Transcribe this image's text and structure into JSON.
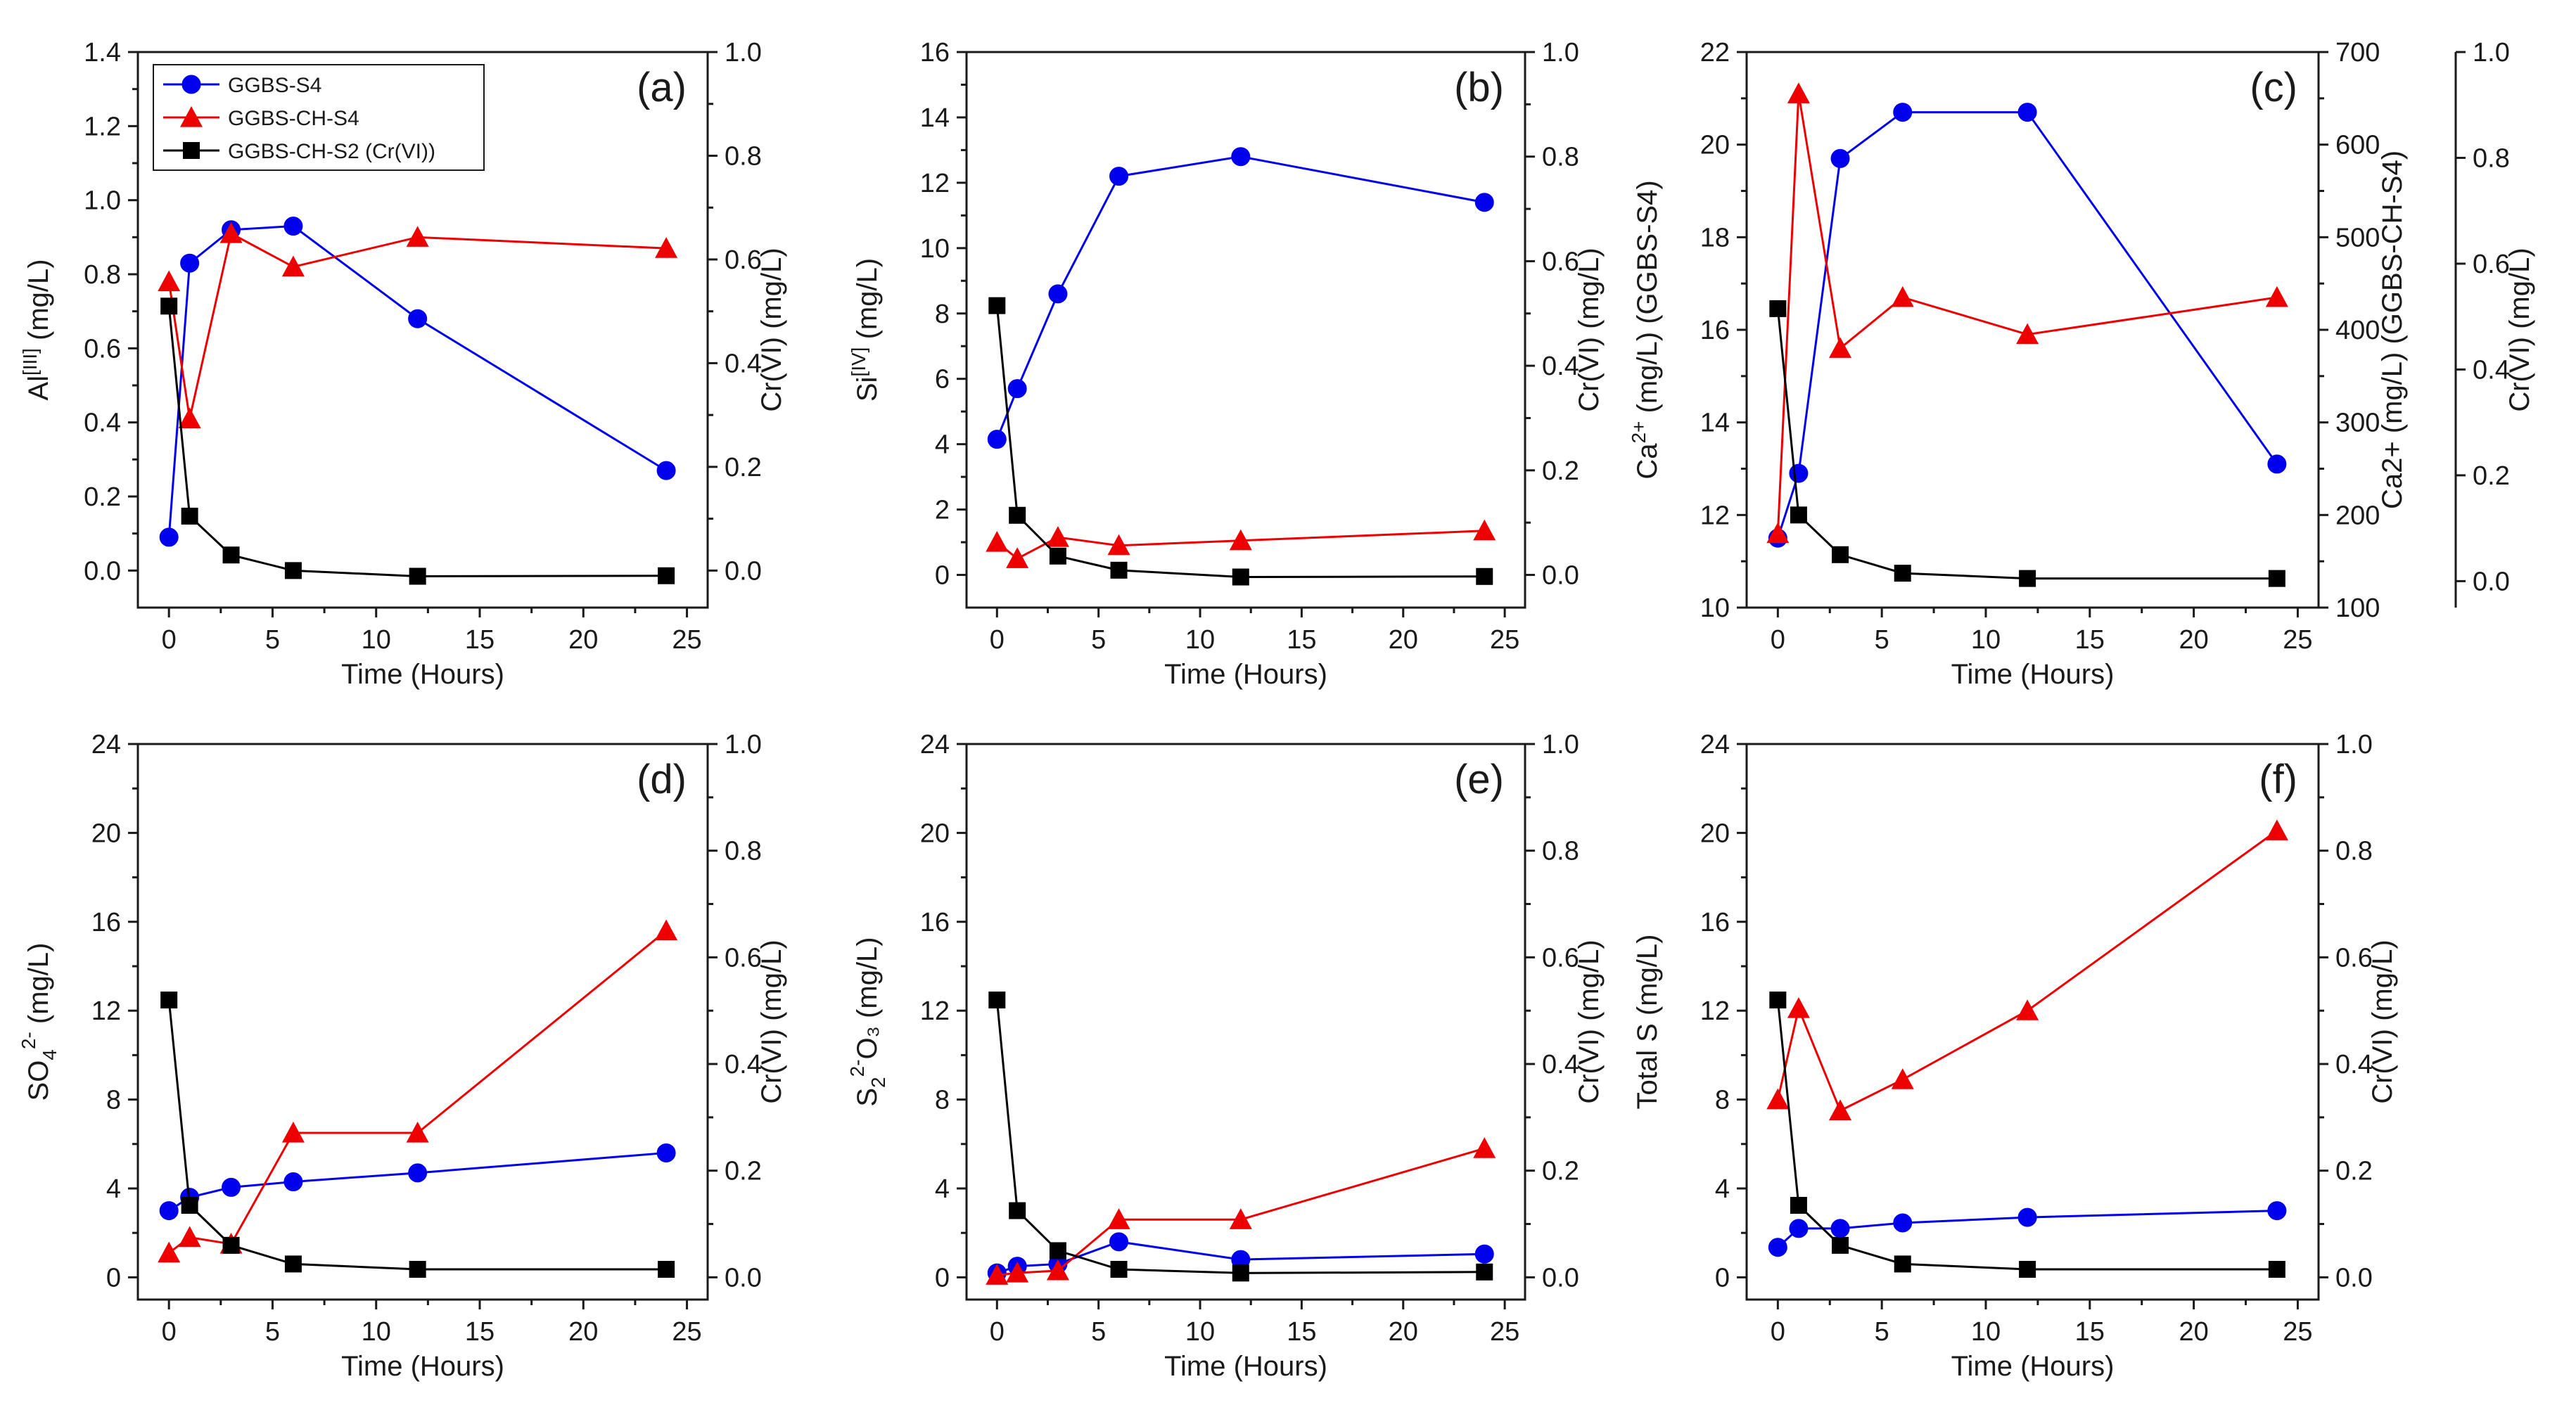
{
  "colors": {
    "s4": "#0000ee",
    "ch_s4": "#ee0000",
    "cr": "#000000"
  },
  "legend": [
    "GGBS-S4",
    "GGBS-CH-S4",
    "GGBS-CH-S2 (Cr(VI))"
  ],
  "chart_data": [
    {
      "id": "a",
      "type": "line",
      "panel_label": "(a)",
      "xlabel": "Time (Hours)",
      "xlim": [
        -1.5,
        26
      ],
      "xticks": [
        0,
        5,
        10,
        15,
        20,
        25
      ],
      "ylabel_main": "Al",
      "ylabel_sup": "[III]",
      "ylabel_sub": "",
      "ylabel_rest": " (mg/L)",
      "ylim": [
        -0.1,
        1.4
      ],
      "yticks": [
        0.0,
        0.2,
        0.4,
        0.6,
        0.8,
        1.0,
        1.2,
        1.4
      ],
      "ydec": 1,
      "y2label": "Cr(VI) (mg/L)",
      "y2lim": [
        -0.0714,
        1.0
      ],
      "y2ticks": [
        0.0,
        0.2,
        0.4,
        0.6,
        0.8,
        1.0
      ],
      "y2dec": 1,
      "series": [
        {
          "name": "GGBS-S4",
          "axis": "left",
          "marker": "circle",
          "x": [
            0,
            1,
            3,
            6,
            12,
            24
          ],
          "y": [
            0.09,
            0.83,
            0.92,
            0.93,
            0.68,
            0.27
          ]
        },
        {
          "name": "GGBS-CH-S4",
          "axis": "left",
          "marker": "triangle",
          "x": [
            0,
            1,
            3,
            6,
            12,
            24
          ],
          "y": [
            0.78,
            0.41,
            0.91,
            0.82,
            0.9,
            0.87
          ]
        },
        {
          "name": "GGBS-CH-S2 (Cr(VI))",
          "axis": "right",
          "marker": "square",
          "x": [
            0,
            1,
            3,
            6,
            12,
            24
          ],
          "y": [
            0.51,
            0.105,
            0.03,
            0.0,
            -0.011,
            -0.01
          ]
        }
      ]
    },
    {
      "id": "b",
      "type": "line",
      "panel_label": "(b)",
      "xlabel": "Time (Hours)",
      "xlim": [
        -1.5,
        26
      ],
      "xticks": [
        0,
        5,
        10,
        15,
        20,
        25
      ],
      "ylabel_main": "Si",
      "ylabel_sup": "[IV]",
      "ylabel_sub": "",
      "ylabel_rest": " (mg/L)",
      "ylim": [
        -1.0,
        16
      ],
      "yticks": [
        0,
        2,
        4,
        6,
        8,
        10,
        12,
        14,
        16
      ],
      "ydec": 0,
      "y2label": "Cr(VI) (mg/L)",
      "y2lim": [
        -0.0625,
        1.0
      ],
      "y2ticks": [
        0.0,
        0.2,
        0.4,
        0.6,
        0.8,
        1.0
      ],
      "y2dec": 1,
      "series": [
        {
          "name": "GGBS-S4",
          "axis": "left",
          "marker": "circle",
          "x": [
            0,
            1,
            3,
            6,
            12,
            24
          ],
          "y": [
            4.15,
            5.7,
            8.6,
            12.2,
            12.8,
            11.4
          ]
        },
        {
          "name": "GGBS-CH-S4",
          "axis": "left",
          "marker": "triangle",
          "x": [
            0,
            1,
            3,
            6,
            12,
            24
          ],
          "y": [
            1.0,
            0.5,
            1.15,
            0.9,
            1.05,
            1.35
          ]
        },
        {
          "name": "GGBS-CH-S2 (Cr(VI))",
          "axis": "right",
          "marker": "square",
          "x": [
            0,
            1,
            3,
            6,
            12,
            24
          ],
          "y": [
            0.515,
            0.114,
            0.036,
            0.009,
            -0.004,
            -0.003
          ]
        }
      ]
    },
    {
      "id": "c",
      "type": "line",
      "panel_label": "(c)",
      "xlabel": "Time (Hours)",
      "xlim": [
        -1.5,
        26
      ],
      "xticks": [
        0,
        5,
        10,
        15,
        20,
        25
      ],
      "ylabel_main": "Ca",
      "ylabel_sup": "2+",
      "ylabel_sub": "",
      "ylabel_rest": " (mg/L) (GGBS-S4)",
      "ylim": [
        10,
        22
      ],
      "yticks": [
        10,
        12,
        14,
        16,
        18,
        20,
        22
      ],
      "ydec": 0,
      "y2label": "Ca2+ (mg/L) (GGBS-CH-S4)",
      "y2lim": [
        100,
        700
      ],
      "y2ticks": [
        100,
        200,
        300,
        400,
        500,
        600,
        700
      ],
      "y2dec": 0,
      "y3label": "Cr(VI) (mg/L)",
      "y3lim": [
        -0.05,
        1.0
      ],
      "y3ticks": [
        0.0,
        0.2,
        0.4,
        0.6,
        0.8,
        1.0
      ],
      "y3dec": 1,
      "series": [
        {
          "name": "GGBS-S4",
          "axis": "left",
          "marker": "circle",
          "x": [
            0,
            1,
            3,
            6,
            12,
            24
          ],
          "y": [
            11.5,
            12.9,
            19.7,
            20.7,
            20.7,
            13.1
          ]
        },
        {
          "name": "GGBS-CH-S4",
          "axis": "right",
          "marker": "triangle",
          "x": [
            0,
            1,
            3,
            6,
            12,
            24
          ],
          "y": [
            180,
            655,
            380,
            435,
            395,
            435
          ]
        },
        {
          "name": "GGBS-CH-S2 (Cr(VI))",
          "axis": "right2",
          "marker": "square",
          "x": [
            0,
            1,
            3,
            6,
            12,
            24
          ],
          "y": [
            0.515,
            0.125,
            0.05,
            0.015,
            0.005,
            0.005
          ]
        }
      ]
    },
    {
      "id": "d",
      "type": "line",
      "panel_label": "(d)",
      "xlabel": "Time (Hours)",
      "xlim": [
        -1.5,
        26
      ],
      "xticks": [
        0,
        5,
        10,
        15,
        20,
        25
      ],
      "ylabel_main": "SO",
      "ylabel_sup": "2-",
      "ylabel_sub": "4",
      "ylabel_rest": " (mg/L)",
      "ylim": [
        -1.0,
        24
      ],
      "yticks": [
        0,
        4,
        8,
        12,
        16,
        20,
        24
      ],
      "ydec": 0,
      "y2label": "Cr(VI) (mg/L)",
      "y2lim": [
        -0.0417,
        1.0
      ],
      "y2ticks": [
        0.0,
        0.2,
        0.4,
        0.6,
        0.8,
        1.0
      ],
      "y2dec": 1,
      "series": [
        {
          "name": "GGBS-S4",
          "axis": "left",
          "marker": "circle",
          "x": [
            0,
            1,
            3,
            6,
            12,
            24
          ],
          "y": [
            3.0,
            3.6,
            4.05,
            4.3,
            4.7,
            5.6
          ]
        },
        {
          "name": "GGBS-CH-S4",
          "axis": "left",
          "marker": "triangle",
          "x": [
            0,
            1,
            3,
            6,
            12,
            24
          ],
          "y": [
            1.1,
            1.8,
            1.5,
            6.5,
            6.5,
            15.6
          ]
        },
        {
          "name": "GGBS-CH-S2 (Cr(VI))",
          "axis": "right",
          "marker": "square",
          "x": [
            0,
            1,
            3,
            6,
            12,
            24
          ],
          "y": [
            0.52,
            0.135,
            0.06,
            0.025,
            0.015,
            0.015
          ]
        }
      ]
    },
    {
      "id": "e",
      "type": "line",
      "panel_label": "(e)",
      "xlabel": "Time (Hours)",
      "xlim": [
        -1.5,
        26
      ],
      "xticks": [
        0,
        5,
        10,
        15,
        20,
        25
      ],
      "ylabel_main": "S",
      "ylabel_sup": "2-",
      "ylabel_sub": "2",
      "ylabel_rest": "O₃ (mg/L)",
      "ylim": [
        -1.0,
        24
      ],
      "yticks": [
        0,
        4,
        8,
        12,
        16,
        20,
        24
      ],
      "ydec": 0,
      "y2label": "Cr(VI) (mg/L)",
      "y2lim": [
        -0.0417,
        1.0
      ],
      "y2ticks": [
        0.0,
        0.2,
        0.4,
        0.6,
        0.8,
        1.0
      ],
      "y2dec": 1,
      "series": [
        {
          "name": "GGBS-S4",
          "axis": "left",
          "marker": "circle",
          "x": [
            0,
            1,
            3,
            6,
            12,
            24
          ],
          "y": [
            0.2,
            0.5,
            0.6,
            1.6,
            0.8,
            1.05
          ]
        },
        {
          "name": "GGBS-CH-S4",
          "axis": "left",
          "marker": "triangle",
          "x": [
            0,
            1,
            3,
            6,
            12,
            24
          ],
          "y": [
            0.1,
            0.2,
            0.3,
            2.6,
            2.6,
            5.8
          ]
        },
        {
          "name": "GGBS-CH-S2 (Cr(VI))",
          "axis": "right",
          "marker": "square",
          "x": [
            0,
            1,
            3,
            6,
            12,
            24
          ],
          "y": [
            0.52,
            0.125,
            0.05,
            0.015,
            0.008,
            0.01
          ]
        }
      ]
    },
    {
      "id": "f",
      "type": "line",
      "panel_label": "(f)",
      "xlabel": "Time (Hours)",
      "xlim": [
        -1.5,
        26
      ],
      "xticks": [
        0,
        5,
        10,
        15,
        20,
        25
      ],
      "ylabel_main": "Total S",
      "ylabel_sup": "",
      "ylabel_sub": "",
      "ylabel_rest": " (mg/L)",
      "ylim": [
        -1.0,
        24
      ],
      "yticks": [
        0,
        4,
        8,
        12,
        16,
        20,
        24
      ],
      "ydec": 0,
      "y2label": "Cr(VI) (mg/L)",
      "y2lim": [
        -0.0417,
        1.0
      ],
      "y2ticks": [
        0.0,
        0.2,
        0.4,
        0.6,
        0.8,
        1.0
      ],
      "y2dec": 1,
      "series": [
        {
          "name": "GGBS-S4",
          "axis": "left",
          "marker": "circle",
          "x": [
            0,
            1,
            3,
            6,
            12,
            24
          ],
          "y": [
            1.35,
            2.2,
            2.2,
            2.45,
            2.7,
            3.0
          ]
        },
        {
          "name": "GGBS-CH-S4",
          "axis": "left",
          "marker": "triangle",
          "x": [
            0,
            1,
            3,
            6,
            12,
            24
          ],
          "y": [
            8.0,
            12.1,
            7.5,
            8.9,
            12.0,
            20.1
          ]
        },
        {
          "name": "GGBS-CH-S2 (Cr(VI))",
          "axis": "right",
          "marker": "square",
          "x": [
            0,
            1,
            3,
            6,
            12,
            24
          ],
          "y": [
            0.52,
            0.135,
            0.06,
            0.025,
            0.015,
            0.015
          ]
        }
      ]
    }
  ]
}
